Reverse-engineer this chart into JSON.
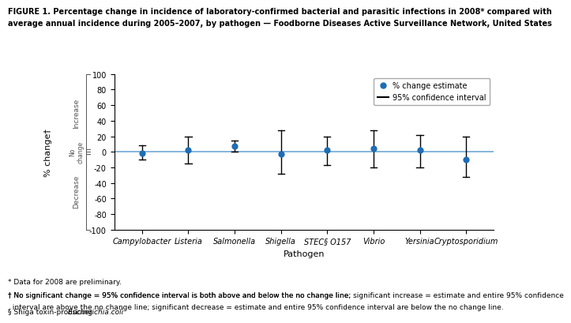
{
  "pathogens": [
    "Campylobacter",
    "Listeria",
    "Salmonella",
    "Shigella",
    "STEC§ O157",
    "Vibrio",
    "Yersinia",
    "Cryptosporidium"
  ],
  "estimates": [
    -2,
    2,
    7,
    -3,
    2,
    4,
    2,
    -10
  ],
  "ci_low": [
    -10,
    -15,
    0,
    -28,
    -17,
    -20,
    -20,
    -32
  ],
  "ci_high": [
    8,
    20,
    14,
    28,
    20,
    28,
    22,
    20
  ],
  "point_color": "#1f6db5",
  "ci_color": "#000000",
  "zeroline_color": "#6fa8d5",
  "ylim": [
    -100,
    100
  ],
  "yticks": [
    -100,
    -80,
    -60,
    -40,
    -20,
    0,
    20,
    40,
    60,
    80,
    100
  ],
  "ylabel": "% change†",
  "xlabel": "Pathogen",
  "title_line1": "FIGURE 1. Percentage change in incidence of laboratory-confirmed bacterial and parasitic infections in 2008* compared with",
  "title_line2": "average annual incidence during 2005–2007, by pathogen — Foodborne Diseases Active Surveillance Network, United States",
  "legend_dot_label": "% change estimate",
  "legend_line_label": "95% confidence interval",
  "footnote1": "* Data for 2008 are preliminary.",
  "footnote2a": "† No significant change = 95% confidence interval is both above and below the no change line; ",
  "footnote2b": "significant increase",
  "footnote2c": " = estimate and entire 95% confidence",
  "footnote2d": "  interval are above the no change line; ",
  "footnote2e": "significant decrease",
  "footnote2f": " = estimate and entire 95% confidence interval are below the no change line.",
  "footnote3a": "§ Shiga toxin-producing ",
  "footnote3b": "Escherichia coli",
  "footnote3c": ".",
  "increase_label": "Increase",
  "decrease_label": "Decrease",
  "no_change_label": "No\nchange"
}
